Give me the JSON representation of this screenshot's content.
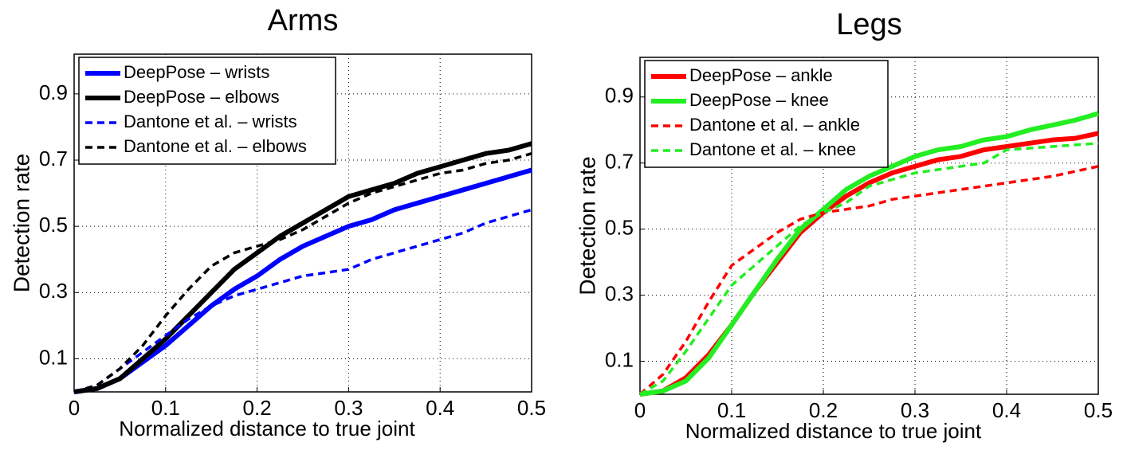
{
  "chart_data": [
    {
      "type": "line",
      "title": "Arms",
      "x_label": "Normalized distance to true joint",
      "y_label": "Detection rate",
      "x": [
        0,
        0.025,
        0.05,
        0.075,
        0.1,
        0.125,
        0.15,
        0.175,
        0.2,
        0.225,
        0.25,
        0.275,
        0.3,
        0.325,
        0.35,
        0.375,
        0.4,
        0.425,
        0.45,
        0.475,
        0.5
      ],
      "series": [
        {
          "name": "DeepPose – wrists",
          "color": "#0000ff",
          "linestyle": "solid",
          "values": [
            0,
            0.01,
            0.04,
            0.09,
            0.14,
            0.2,
            0.26,
            0.31,
            0.35,
            0.4,
            0.44,
            0.47,
            0.5,
            0.52,
            0.55,
            0.57,
            0.59,
            0.61,
            0.63,
            0.65,
            0.67
          ]
        },
        {
          "name": "DeepPose – elbows",
          "color": "#000000",
          "linestyle": "solid",
          "values": [
            0,
            0.01,
            0.04,
            0.1,
            0.16,
            0.23,
            0.3,
            0.37,
            0.42,
            0.47,
            0.51,
            0.55,
            0.59,
            0.61,
            0.63,
            0.66,
            0.68,
            0.7,
            0.72,
            0.73,
            0.75
          ]
        },
        {
          "name": "Dantone et al. – wrists",
          "color": "#0000ff",
          "linestyle": "dashed",
          "values": [
            0,
            0.02,
            0.07,
            0.12,
            0.17,
            0.22,
            0.26,
            0.29,
            0.31,
            0.33,
            0.35,
            0.36,
            0.37,
            0.4,
            0.42,
            0.44,
            0.46,
            0.48,
            0.51,
            0.53,
            0.55
          ]
        },
        {
          "name": "Dantone et al. – elbows",
          "color": "#000000",
          "linestyle": "dashed",
          "values": [
            0,
            0.02,
            0.07,
            0.14,
            0.23,
            0.31,
            0.38,
            0.42,
            0.44,
            0.46,
            0.49,
            0.53,
            0.57,
            0.6,
            0.62,
            0.64,
            0.66,
            0.67,
            0.69,
            0.7,
            0.72
          ]
        }
      ],
      "xlim": [
        0,
        0.5
      ],
      "ylim": [
        0,
        1.02
      ],
      "xticks": [
        0,
        0.1,
        0.2,
        0.3,
        0.4,
        0.5
      ],
      "yticks": [
        0.1,
        0.3,
        0.5,
        0.7,
        0.9
      ],
      "grid": true,
      "legend": "upper-left"
    },
    {
      "type": "line",
      "title": "Legs",
      "x_label": "Normalized distance to true joint",
      "y_label": "Detection rate",
      "x": [
        0,
        0.025,
        0.05,
        0.075,
        0.1,
        0.125,
        0.15,
        0.175,
        0.2,
        0.225,
        0.25,
        0.275,
        0.3,
        0.325,
        0.35,
        0.375,
        0.4,
        0.425,
        0.45,
        0.475,
        0.5
      ],
      "series": [
        {
          "name": "DeepPose – ankle",
          "color": "#ff0000",
          "linestyle": "solid",
          "values": [
            0,
            0.01,
            0.05,
            0.12,
            0.21,
            0.31,
            0.4,
            0.49,
            0.55,
            0.6,
            0.64,
            0.67,
            0.69,
            0.71,
            0.72,
            0.74,
            0.75,
            0.76,
            0.77,
            0.775,
            0.79
          ]
        },
        {
          "name": "DeepPose – knee",
          "color": "#22ee22",
          "linestyle": "solid",
          "values": [
            0,
            0.01,
            0.04,
            0.11,
            0.21,
            0.31,
            0.41,
            0.5,
            0.56,
            0.62,
            0.66,
            0.69,
            0.72,
            0.74,
            0.75,
            0.77,
            0.78,
            0.8,
            0.815,
            0.83,
            0.85
          ]
        },
        {
          "name": "Dantone et al. – ankle",
          "color": "#ff0000",
          "linestyle": "dashed",
          "values": [
            0,
            0.06,
            0.16,
            0.28,
            0.39,
            0.44,
            0.49,
            0.53,
            0.55,
            0.56,
            0.57,
            0.59,
            0.6,
            0.61,
            0.62,
            0.63,
            0.64,
            0.65,
            0.66,
            0.675,
            0.69
          ]
        },
        {
          "name": "Dantone et al. – knee",
          "color": "#22ee22",
          "linestyle": "dashed",
          "values": [
            0,
            0.04,
            0.13,
            0.23,
            0.33,
            0.39,
            0.45,
            0.51,
            0.55,
            0.58,
            0.63,
            0.65,
            0.67,
            0.68,
            0.69,
            0.7,
            0.74,
            0.745,
            0.75,
            0.755,
            0.76
          ]
        }
      ],
      "xlim": [
        0,
        0.5
      ],
      "ylim": [
        0,
        1.02
      ],
      "xticks": [
        0,
        0.1,
        0.2,
        0.3,
        0.4,
        0.5
      ],
      "yticks": [
        0.1,
        0.3,
        0.5,
        0.7,
        0.9
      ],
      "grid": true,
      "legend": "upper-left"
    }
  ]
}
